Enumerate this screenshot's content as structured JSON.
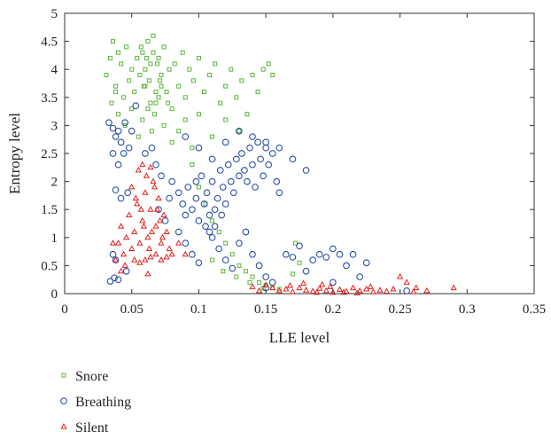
{
  "chart_data": {
    "type": "scatter",
    "title": "",
    "xlabel": "LLE level",
    "ylabel": "Entropy level",
    "xlim": [
      0,
      0.35
    ],
    "ylim": [
      0,
      5
    ],
    "xticks": [
      "0",
      "0.05",
      "0.1",
      "0.15",
      "0.2",
      "0.25",
      "0.3",
      "0.35"
    ],
    "yticks": [
      "0",
      "0.5",
      "1",
      "1.5",
      "2",
      "2.5",
      "3",
      "3.5",
      "4",
      "4.5",
      "5"
    ],
    "grid": false,
    "legend_position": "below-left",
    "series": [
      {
        "name": "Snore",
        "marker": "square",
        "color": "#5bb53a",
        "points": [
          [
            0.031,
            3.9
          ],
          [
            0.034,
            4.2
          ],
          [
            0.036,
            4.5
          ],
          [
            0.038,
            3.7
          ],
          [
            0.04,
            4.3
          ],
          [
            0.042,
            4.1
          ],
          [
            0.044,
            3.5
          ],
          [
            0.046,
            4.4
          ],
          [
            0.048,
            3.8
          ],
          [
            0.05,
            4.0
          ],
          [
            0.052,
            3.6
          ],
          [
            0.054,
            4.2
          ],
          [
            0.056,
            3.9
          ],
          [
            0.058,
            4.3
          ],
          [
            0.06,
            3.7
          ],
          [
            0.062,
            4.5
          ],
          [
            0.064,
            4.1
          ],
          [
            0.066,
            4.6
          ],
          [
            0.068,
            3.4
          ],
          [
            0.07,
            4.2
          ],
          [
            0.072,
            3.9
          ],
          [
            0.074,
            4.4
          ],
          [
            0.076,
            3.6
          ],
          [
            0.078,
            4.0
          ],
          [
            0.08,
            3.3
          ],
          [
            0.082,
            4.1
          ],
          [
            0.085,
            3.7
          ],
          [
            0.088,
            4.3
          ],
          [
            0.09,
            3.5
          ],
          [
            0.093,
            4.0
          ],
          [
            0.096,
            3.8
          ],
          [
            0.1,
            4.2
          ],
          [
            0.104,
            3.6
          ],
          [
            0.108,
            3.9
          ],
          [
            0.112,
            4.1
          ],
          [
            0.116,
            3.4
          ],
          [
            0.12,
            3.7
          ],
          [
            0.124,
            4.0
          ],
          [
            0.128,
            3.5
          ],
          [
            0.132,
            3.8
          ],
          [
            0.136,
            3.2
          ],
          [
            0.14,
            3.9
          ],
          [
            0.144,
            3.6
          ],
          [
            0.148,
            4.0
          ],
          [
            0.152,
            4.1
          ],
          [
            0.155,
            3.9
          ],
          [
            0.04,
            3.2
          ],
          [
            0.045,
            3.0
          ],
          [
            0.05,
            3.3
          ],
          [
            0.055,
            2.8
          ],
          [
            0.058,
            3.1
          ],
          [
            0.062,
            3.3
          ],
          [
            0.065,
            2.9
          ],
          [
            0.068,
            3.6
          ],
          [
            0.071,
            3.8
          ],
          [
            0.074,
            3.0
          ],
          [
            0.077,
            3.4
          ],
          [
            0.08,
            2.7
          ],
          [
            0.085,
            2.9
          ],
          [
            0.09,
            3.1
          ],
          [
            0.095,
            2.6
          ],
          [
            0.1,
            3.2
          ],
          [
            0.11,
            2.8
          ],
          [
            0.12,
            3.1
          ],
          [
            0.13,
            2.9
          ],
          [
            0.035,
            3.4
          ],
          [
            0.038,
            3.6
          ],
          [
            0.06,
            4.0
          ],
          [
            0.063,
            3.8
          ],
          [
            0.066,
            4.3
          ],
          [
            0.069,
            4.1
          ],
          [
            0.072,
            3.7
          ],
          [
            0.057,
            4.4
          ],
          [
            0.061,
            4.2
          ],
          [
            0.067,
            3.2
          ],
          [
            0.07,
            3.5
          ],
          [
            0.064,
            3.4
          ],
          [
            0.059,
            3.7
          ],
          [
            0.095,
            2.3
          ],
          [
            0.1,
            1.9
          ],
          [
            0.105,
            1.6
          ],
          [
            0.11,
            1.3
          ],
          [
            0.115,
            1.1
          ],
          [
            0.12,
            0.9
          ],
          [
            0.125,
            0.7
          ],
          [
            0.13,
            0.5
          ],
          [
            0.135,
            0.4
          ],
          [
            0.14,
            0.3
          ],
          [
            0.145,
            0.2
          ],
          [
            0.15,
            0.15
          ],
          [
            0.155,
            0.1
          ],
          [
            0.16,
            0.08
          ],
          [
            0.11,
            0.6
          ],
          [
            0.118,
            0.4
          ],
          [
            0.128,
            0.3
          ],
          [
            0.138,
            0.2
          ],
          [
            0.148,
            0.1
          ],
          [
            0.172,
            0.9
          ],
          [
            0.175,
            0.55
          ],
          [
            0.17,
            0.35
          ]
        ]
      },
      {
        "name": "Breathing",
        "marker": "circle",
        "color": "#2a4fa8",
        "points": [
          [
            0.033,
            3.05
          ],
          [
            0.036,
            2.95
          ],
          [
            0.038,
            2.8
          ],
          [
            0.04,
            2.9
          ],
          [
            0.042,
            2.7
          ],
          [
            0.045,
            3.05
          ],
          [
            0.048,
            2.6
          ],
          [
            0.05,
            2.9
          ],
          [
            0.053,
            3.35
          ],
          [
            0.036,
            2.5
          ],
          [
            0.04,
            2.3
          ],
          [
            0.044,
            2.5
          ],
          [
            0.038,
            1.85
          ],
          [
            0.042,
            1.7
          ],
          [
            0.047,
            1.8
          ],
          [
            0.034,
            0.22
          ],
          [
            0.037,
            0.28
          ],
          [
            0.04,
            0.25
          ],
          [
            0.046,
            0.4
          ],
          [
            0.038,
            0.6
          ],
          [
            0.036,
            0.7
          ],
          [
            0.08,
            2.0
          ],
          [
            0.085,
            1.8
          ],
          [
            0.088,
            1.6
          ],
          [
            0.09,
            1.4
          ],
          [
            0.092,
            1.9
          ],
          [
            0.095,
            1.5
          ],
          [
            0.098,
            1.7
          ],
          [
            0.1,
            1.3
          ],
          [
            0.102,
            2.1
          ],
          [
            0.104,
            1.6
          ],
          [
            0.106,
            1.8
          ],
          [
            0.108,
            1.4
          ],
          [
            0.11,
            2.0
          ],
          [
            0.112,
            1.5
          ],
          [
            0.114,
            1.7
          ],
          [
            0.116,
            2.2
          ],
          [
            0.118,
            1.9
          ],
          [
            0.12,
            1.6
          ],
          [
            0.122,
            2.3
          ],
          [
            0.124,
            2.0
          ],
          [
            0.126,
            1.8
          ],
          [
            0.128,
            2.4
          ],
          [
            0.13,
            2.1
          ],
          [
            0.132,
            2.5
          ],
          [
            0.134,
            2.2
          ],
          [
            0.136,
            2.0
          ],
          [
            0.138,
            2.6
          ],
          [
            0.14,
            2.3
          ],
          [
            0.142,
            1.9
          ],
          [
            0.144,
            2.7
          ],
          [
            0.146,
            2.4
          ],
          [
            0.148,
            2.1
          ],
          [
            0.15,
            2.6
          ],
          [
            0.152,
            2.3
          ],
          [
            0.155,
            2.5
          ],
          [
            0.158,
            2.0
          ],
          [
            0.16,
            1.8
          ],
          [
            0.09,
            2.8
          ],
          [
            0.1,
            2.6
          ],
          [
            0.11,
            2.4
          ],
          [
            0.12,
            2.7
          ],
          [
            0.13,
            2.9
          ],
          [
            0.14,
            2.8
          ],
          [
            0.15,
            2.7
          ],
          [
            0.17,
            2.4
          ],
          [
            0.18,
            2.2
          ],
          [
            0.16,
            2.6
          ],
          [
            0.085,
            1.1
          ],
          [
            0.09,
            0.9
          ],
          [
            0.095,
            0.7
          ],
          [
            0.1,
            0.55
          ],
          [
            0.105,
            1.2
          ],
          [
            0.11,
            1.0
          ],
          [
            0.115,
            0.8
          ],
          [
            0.12,
            0.6
          ],
          [
            0.125,
            0.45
          ],
          [
            0.13,
            0.9
          ],
          [
            0.135,
            1.1
          ],
          [
            0.14,
            0.7
          ],
          [
            0.145,
            0.5
          ],
          [
            0.15,
            0.3
          ],
          [
            0.155,
            0.2
          ],
          [
            0.165,
            0.7
          ],
          [
            0.17,
            0.65
          ],
          [
            0.175,
            0.85
          ],
          [
            0.18,
            0.4
          ],
          [
            0.185,
            0.6
          ],
          [
            0.19,
            0.7
          ],
          [
            0.195,
            0.65
          ],
          [
            0.2,
            0.8
          ],
          [
            0.205,
            0.7
          ],
          [
            0.21,
            0.5
          ],
          [
            0.215,
            0.7
          ],
          [
            0.22,
            0.3
          ],
          [
            0.225,
            0.55
          ],
          [
            0.15,
            0.1
          ],
          [
            0.2,
            0.2
          ],
          [
            0.255,
            0.05
          ],
          [
            0.07,
            1.5
          ],
          [
            0.075,
            1.3
          ],
          [
            0.078,
            1.7
          ],
          [
            0.065,
            2.6
          ],
          [
            0.068,
            2.3
          ],
          [
            0.072,
            2.1
          ],
          [
            0.06,
            2.5
          ],
          [
            0.098,
            2.0
          ],
          [
            0.108,
            1.1
          ],
          [
            0.112,
            1.2
          ],
          [
            0.117,
            1.4
          ]
        ]
      },
      {
        "name": "Silent",
        "marker": "triangle",
        "color": "#e3201b",
        "points": [
          [
            0.04,
            0.9
          ],
          [
            0.042,
            1.2
          ],
          [
            0.044,
            0.7
          ],
          [
            0.046,
            1.0
          ],
          [
            0.048,
            1.4
          ],
          [
            0.05,
            0.8
          ],
          [
            0.052,
            1.1
          ],
          [
            0.054,
            1.6
          ],
          [
            0.056,
            0.9
          ],
          [
            0.058,
            1.3
          ],
          [
            0.06,
            1.8
          ],
          [
            0.062,
            1.0
          ],
          [
            0.064,
            1.5
          ],
          [
            0.066,
            2.0
          ],
          [
            0.068,
            1.2
          ],
          [
            0.07,
            1.7
          ],
          [
            0.072,
            0.9
          ],
          [
            0.074,
            1.4
          ],
          [
            0.076,
            1.1
          ],
          [
            0.078,
            0.8
          ],
          [
            0.055,
            2.2
          ],
          [
            0.058,
            2.3
          ],
          [
            0.061,
            2.1
          ],
          [
            0.064,
            2.25
          ],
          [
            0.067,
            1.9
          ],
          [
            0.052,
            0.6
          ],
          [
            0.056,
            0.55
          ],
          [
            0.06,
            0.6
          ],
          [
            0.064,
            0.65
          ],
          [
            0.068,
            0.7
          ],
          [
            0.072,
            0.6
          ],
          [
            0.076,
            0.65
          ],
          [
            0.08,
            0.7
          ],
          [
            0.05,
            1.9
          ],
          [
            0.053,
            1.7
          ],
          [
            0.057,
            1.5
          ],
          [
            0.059,
            1.2
          ],
          [
            0.063,
            0.8
          ],
          [
            0.065,
            1.1
          ],
          [
            0.069,
            1.5
          ],
          [
            0.071,
            1.3
          ],
          [
            0.073,
            1.0
          ],
          [
            0.045,
            0.5
          ],
          [
            0.042,
            0.4
          ],
          [
            0.038,
            0.6
          ],
          [
            0.036,
            0.9
          ],
          [
            0.062,
            0.35
          ],
          [
            0.085,
            0.9
          ],
          [
            0.09,
            0.7
          ],
          [
            0.155,
            0.1
          ],
          [
            0.16,
            0.05
          ],
          [
            0.165,
            0.08
          ],
          [
            0.17,
            0.03
          ],
          [
            0.175,
            0.1
          ],
          [
            0.18,
            0.06
          ],
          [
            0.185,
            0.04
          ],
          [
            0.19,
            0.09
          ],
          [
            0.195,
            0.05
          ],
          [
            0.2,
            0.02
          ],
          [
            0.205,
            0.07
          ],
          [
            0.21,
            0.04
          ],
          [
            0.215,
            0.1
          ],
          [
            0.22,
            0.05
          ],
          [
            0.225,
            0.08
          ],
          [
            0.23,
            0.03
          ],
          [
            0.235,
            0.06
          ],
          [
            0.24,
            0.04
          ],
          [
            0.25,
            0.3
          ],
          [
            0.255,
            0.2
          ],
          [
            0.262,
            0.1
          ],
          [
            0.27,
            0.05
          ],
          [
            0.29,
            0.1
          ],
          [
            0.15,
            0.15
          ],
          [
            0.145,
            0.05
          ],
          [
            0.14,
            0.12
          ],
          [
            0.178,
            0.18
          ],
          [
            0.188,
            0.02
          ],
          [
            0.198,
            0.12
          ],
          [
            0.208,
            0.02
          ],
          [
            0.218,
            0.01
          ],
          [
            0.228,
            0.12
          ],
          [
            0.245,
            0.08
          ],
          [
            0.26,
            0.03
          ],
          [
            0.168,
            0.14
          ],
          [
            0.192,
            0.16
          ]
        ]
      }
    ]
  }
}
